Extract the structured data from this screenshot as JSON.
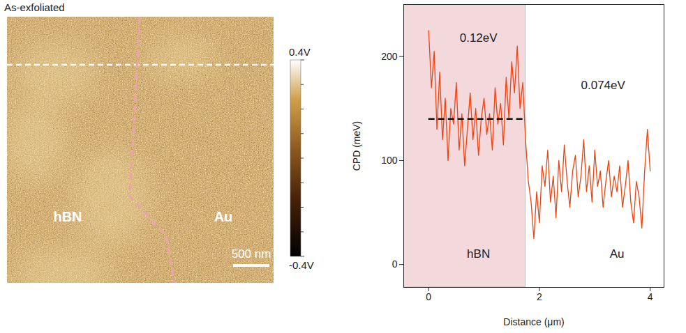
{
  "chart_data": [
    {
      "type": "image",
      "title": "As-exfoliated",
      "annotations": [
        {
          "text": "hBN"
        },
        {
          "text": "Au"
        }
      ],
      "scale_bar": "500 nm",
      "color_bar": {
        "range": [
          -0.4,
          0.4
        ],
        "ticks": [
          {
            "value": 0.4,
            "label": "0.4V"
          },
          {
            "value": -0.4,
            "label": "-0.4V"
          }
        ]
      }
    },
    {
      "type": "line",
      "x_label": "Distance (μm)",
      "y_label": "CPD (meV)",
      "x": [
        0,
        0.05,
        0.1,
        0.15,
        0.2,
        0.25,
        0.3,
        0.35,
        0.4,
        0.45,
        0.5,
        0.55,
        0.6,
        0.65,
        0.7,
        0.75,
        0.8,
        0.85,
        0.9,
        0.95,
        1,
        1.05,
        1.1,
        1.15,
        1.2,
        1.25,
        1.3,
        1.35,
        1.4,
        1.45,
        1.5,
        1.55,
        1.6,
        1.65,
        1.7,
        1.75,
        1.8,
        1.85,
        1.9,
        1.95,
        2,
        2.05,
        2.1,
        2.15,
        2.2,
        2.25,
        2.3,
        2.35,
        2.4,
        2.45,
        2.5,
        2.55,
        2.6,
        2.65,
        2.7,
        2.75,
        2.8,
        2.85,
        2.9,
        2.95,
        3,
        3.05,
        3.1,
        3.15,
        3.2,
        3.25,
        3.3,
        3.35,
        3.4,
        3.45,
        3.5,
        3.55,
        3.6,
        3.65,
        3.7,
        3.75,
        3.8,
        3.85,
        3.9,
        3.95,
        4
      ],
      "values": [
        225,
        170,
        205,
        130,
        185,
        120,
        160,
        100,
        150,
        135,
        175,
        110,
        145,
        95,
        130,
        165,
        120,
        150,
        105,
        140,
        160,
        125,
        145,
        110,
        170,
        135,
        155,
        115,
        180,
        140,
        195,
        165,
        210,
        150,
        175,
        120,
        80,
        60,
        25,
        70,
        40,
        95,
        75,
        110,
        60,
        85,
        45,
        100,
        70,
        115,
        80,
        55,
        90,
        105,
        65,
        85,
        120,
        70,
        95,
        60,
        110,
        75,
        90,
        55,
        80,
        100,
        65,
        85,
        70,
        95,
        55,
        75,
        100,
        60,
        40,
        80,
        65,
        35,
        90,
        130,
        90
      ],
      "color": "#ee4411",
      "xlim": [
        -0.45,
        4.25
      ],
      "xticks": [
        0,
        2,
        4
      ],
      "ylim": [
        -22,
        250
      ],
      "yticks": [
        0,
        100,
        200
      ],
      "shaded_region": {
        "x": [
          -0.45,
          1.75
        ],
        "color": "#f3d9dc"
      },
      "reference_line": {
        "y": 140,
        "x": [
          0,
          1.75
        ],
        "line_style": "dashed"
      },
      "annotations": [
        {
          "text": "0.12eV",
          "x": 0.9,
          "y": 218
        },
        {
          "text": "0.074eV",
          "x": 3.15,
          "y": 172
        },
        {
          "text": "hBN",
          "x": 0.9,
          "y": 10
        },
        {
          "text": "Au",
          "x": 3.4,
          "y": 10
        }
      ]
    }
  ]
}
